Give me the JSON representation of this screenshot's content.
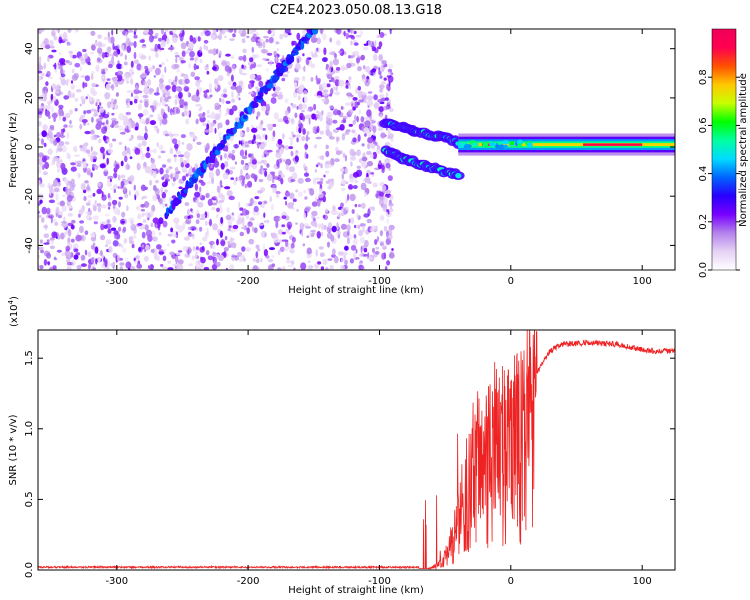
{
  "title": "C2E4.2023.050.08.13.G18",
  "chart_data": [
    {
      "type": "heatmap",
      "xlabel": "Height of straight line (km)",
      "ylabel": "Frequency (Hz)",
      "xlim": [
        -360,
        125
      ],
      "ylim": [
        -50,
        48
      ],
      "xticks": [
        -300,
        -200,
        -100,
        0,
        100
      ],
      "yticks": [
        -40,
        -20,
        0,
        20,
        40
      ],
      "colorbar": {
        "label": "Normalized spectral amplitude",
        "range": [
          0,
          1
        ],
        "ticks": [
          "0.0",
          "0.2",
          "0.4",
          "0.6",
          "0.8"
        ],
        "colormap": [
          "#ffffff",
          "#e6d2f5",
          "#b482eb",
          "#7800ff",
          "#2800ff",
          "#0064ff",
          "#00dcff",
          "#00ffa0",
          "#00ff00",
          "#c8ff00",
          "#ffc800",
          "#ff5000",
          "#ff0050",
          "#f0005a"
        ]
      },
      "features": {
        "noise_region_x": [
          -360,
          -90
        ],
        "upper_streak_x": [
          -262,
          -150
        ],
        "upper_streak_y": [
          -27,
          48
        ],
        "tail_fork_x": [
          -95,
          -40
        ],
        "upper_fork_y": [
          10,
          2
        ],
        "lower_fork_y": [
          -2,
          -12
        ],
        "band_x": [
          -40,
          125
        ],
        "band_y": 1
      }
    },
    {
      "type": "line",
      "xlabel": "Height of straight line (km)",
      "ylabel": "SNR (10 * v/v)",
      "exponent_label": "(x10",
      "exponent_power": "4",
      "exponent_close": ")",
      "xlim": [
        -360,
        125
      ],
      "ylim": [
        0,
        1.7
      ],
      "xticks": [
        -300,
        -200,
        -100,
        0,
        100
      ],
      "yticks": [
        "0.0",
        "0.5",
        "1.0",
        "1.5"
      ],
      "series": [
        {
          "color": "#ee2222",
          "points": [
            [
              -360,
              0.02
            ],
            [
              -70,
              0.02
            ],
            [
              -62,
              0.06
            ],
            [
              -55,
              0.14
            ],
            [
              -48,
              0.3
            ],
            [
              -40,
              0.55
            ],
            [
              -33,
              0.75
            ],
            [
              -26,
              0.9
            ],
            [
              -20,
              1.0
            ],
            [
              -14,
              1.05
            ],
            [
              -8,
              1.1
            ],
            [
              -2,
              1.1
            ],
            [
              5,
              1.12
            ],
            [
              10,
              1.15
            ],
            [
              15,
              1.3
            ],
            [
              20,
              1.4
            ],
            [
              25,
              1.48
            ],
            [
              30,
              1.55
            ],
            [
              35,
              1.58
            ],
            [
              40,
              1.6
            ],
            [
              60,
              1.61
            ],
            [
              80,
              1.6
            ],
            [
              90,
              1.58
            ],
            [
              100,
              1.56
            ],
            [
              110,
              1.55
            ],
            [
              125,
              1.55
            ]
          ]
        }
      ]
    }
  ]
}
